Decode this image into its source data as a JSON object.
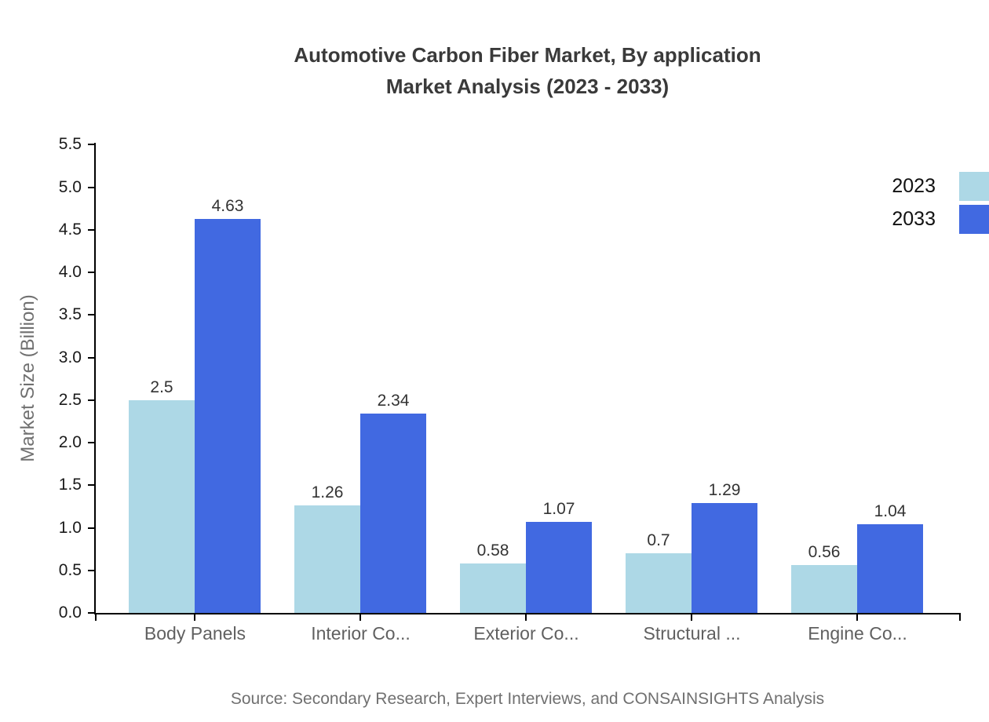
{
  "chart_data": {
    "type": "bar",
    "title_lines": [
      "Automotive Carbon Fiber Market, By application",
      "Market Analysis (2023 - 2033)"
    ],
    "ylabel": "Market Size (Billion)",
    "categories": [
      "Body Panels",
      "Interior Co...",
      "Exterior Co...",
      "Structural ...",
      "Engine Co..."
    ],
    "series": [
      {
        "name": "2023",
        "color": "#add8e6",
        "values": [
          2.5,
          1.26,
          0.58,
          0.7,
          0.56
        ],
        "labels": [
          "2.5",
          "1.26",
          "0.58",
          "0.7",
          "0.56"
        ]
      },
      {
        "name": "2033",
        "color": "#4169e1",
        "values": [
          4.63,
          2.34,
          1.07,
          1.29,
          1.04
        ],
        "labels": [
          "4.63",
          "2.34",
          "1.07",
          "1.29",
          "1.04"
        ]
      }
    ],
    "ylim": [
      0,
      5.5
    ],
    "yticks": [
      "0.0",
      "0.5",
      "1.0",
      "1.5",
      "2.0",
      "2.5",
      "3.0",
      "3.5",
      "4.0",
      "4.5",
      "5.0",
      "5.5"
    ],
    "grid": false,
    "legend_position": "top-right",
    "source": "Source: Secondary Research, Expert Interviews, and CONSAINSIGHTS Analysis",
    "colors": {
      "axis": "#000000",
      "title": "#3a3a3a",
      "tick_label": "#1a1a1a",
      "category_label": "#606060",
      "axis_title": "#707070",
      "value_label": "#333333",
      "source": "#707070",
      "background": "#ffffff"
    }
  }
}
